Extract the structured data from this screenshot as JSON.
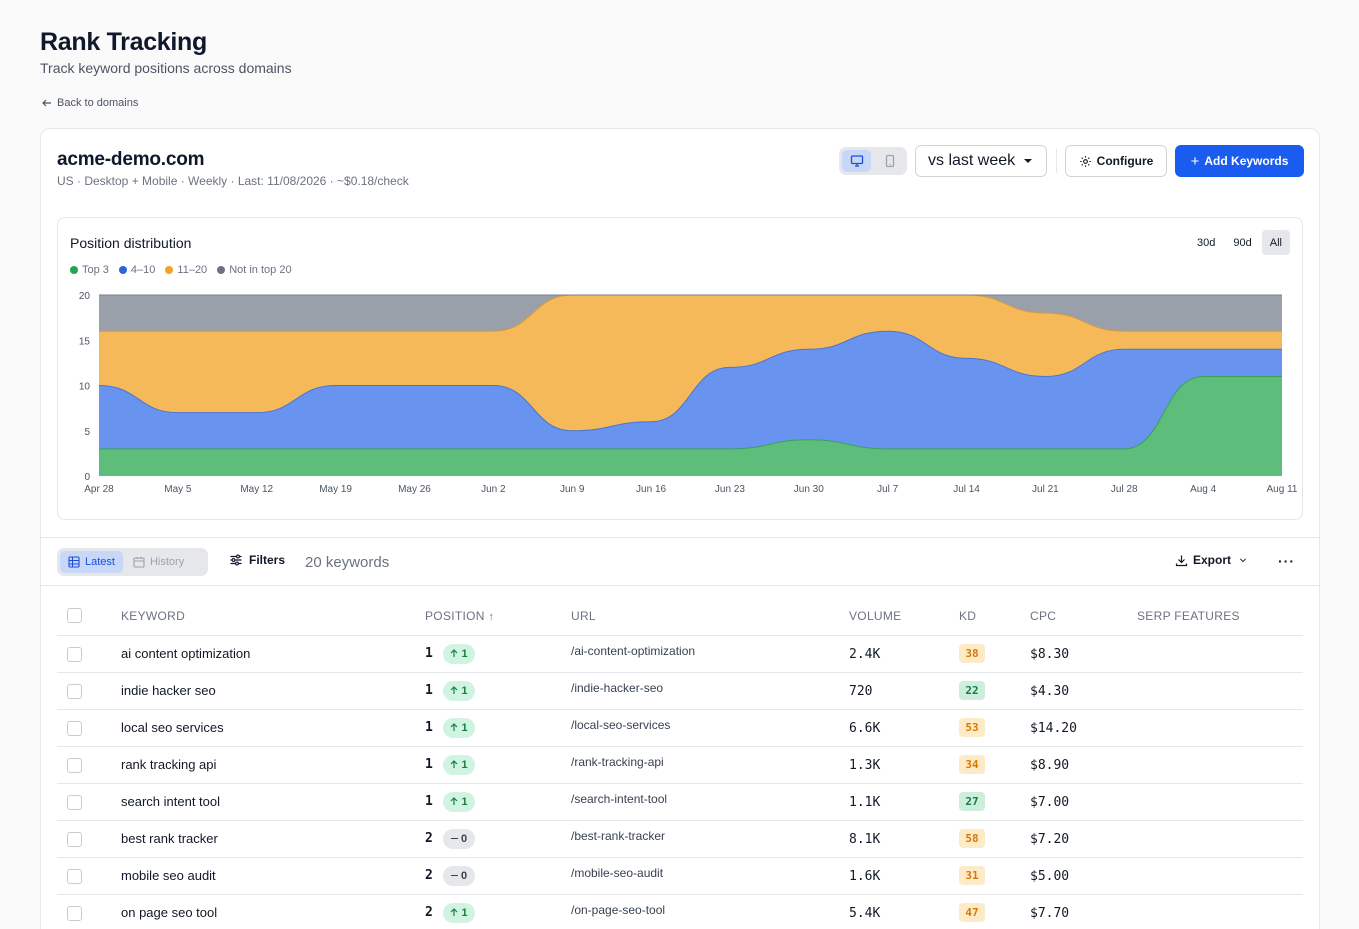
{
  "header": {
    "title": "Rank Tracking",
    "subtitle": "Track keyword positions across domains",
    "back_label": "Back to domains"
  },
  "domain": {
    "name": "acme-demo.com",
    "meta": "US · Desktop + Mobile · Weekly · Last: 11/08/2026 · ~$0.18/check",
    "compare_label": "vs last week",
    "configure_label": "Configure",
    "add_label": "Add Keywords"
  },
  "chart": {
    "title": "Position distribution",
    "ranges": [
      "30d",
      "90d",
      "All"
    ],
    "active_range": "All"
  },
  "colors": {
    "top3": "#5cbe7a",
    "top10": "#6893ef",
    "top20": "#f6b95a",
    "not_top20": "#9aa0aa",
    "accent": "#1a5cf0"
  },
  "chart_data": {
    "type": "area",
    "stacked": true,
    "x": [
      "Apr 28",
      "May 5",
      "May 12",
      "May 19",
      "May 26",
      "Jun 2",
      "Jun 9",
      "Jun 16",
      "Jun 23",
      "Jun 30",
      "Jul 7",
      "Jul 14",
      "Jul 21",
      "Jul 28",
      "Aug 4",
      "Aug 11"
    ],
    "ylim": [
      0,
      20
    ],
    "yticks": [
      0,
      5,
      10,
      15,
      20
    ],
    "series": [
      {
        "name": "Top 3",
        "values": [
          3,
          3,
          3,
          3,
          3,
          3,
          3,
          3,
          3,
          4,
          3,
          3,
          3,
          3,
          11,
          11
        ]
      },
      {
        "name": "4–10",
        "values": [
          7,
          4,
          4,
          7,
          7,
          7,
          2,
          3,
          9,
          10,
          13,
          10,
          8,
          11,
          3,
          3
        ]
      },
      {
        "name": "11–20",
        "values": [
          6,
          9,
          9,
          6,
          6,
          6,
          15,
          14,
          8,
          6,
          4,
          7,
          7,
          2,
          2,
          2
        ]
      },
      {
        "name": "Not in top 20",
        "values": [
          4,
          4,
          4,
          4,
          4,
          4,
          0,
          0,
          0,
          0,
          0,
          0,
          2,
          4,
          4,
          4
        ]
      }
    ],
    "legend": "top-left",
    "grid": false
  },
  "toolbar": {
    "latest_label": "Latest",
    "history_label": "History",
    "filters_label": "Filters",
    "count_label": "20 keywords",
    "export_label": "Export",
    "more_label": "···"
  },
  "table": {
    "columns": [
      "KEYWORD",
      "POSITION",
      "URL",
      "VOLUME",
      "KD",
      "CPC",
      "SERP FEATURES"
    ],
    "sort_indicator": "↑",
    "rows": [
      {
        "keyword": "ai content optimization",
        "position": "1",
        "change": "1",
        "dir": "up",
        "url": "/ai-content-optimization",
        "volume": "2.4K",
        "kd": "38",
        "kd_level": "med",
        "cpc": "$8.30"
      },
      {
        "keyword": "indie hacker seo",
        "position": "1",
        "change": "1",
        "dir": "up",
        "url": "/indie-hacker-seo",
        "volume": "720",
        "kd": "22",
        "kd_level": "low",
        "cpc": "$4.30"
      },
      {
        "keyword": "local seo services",
        "position": "1",
        "change": "1",
        "dir": "up",
        "url": "/local-seo-services",
        "volume": "6.6K",
        "kd": "53",
        "kd_level": "med",
        "cpc": "$14.20"
      },
      {
        "keyword": "rank tracking api",
        "position": "1",
        "change": "1",
        "dir": "up",
        "url": "/rank-tracking-api",
        "volume": "1.3K",
        "kd": "34",
        "kd_level": "med",
        "cpc": "$8.90"
      },
      {
        "keyword": "search intent tool",
        "position": "1",
        "change": "1",
        "dir": "up",
        "url": "/search-intent-tool",
        "volume": "1.1K",
        "kd": "27",
        "kd_level": "low",
        "cpc": "$7.00"
      },
      {
        "keyword": "best rank tracker",
        "position": "2",
        "change": "0",
        "dir": "flat",
        "url": "/best-rank-tracker",
        "volume": "8.1K",
        "kd": "58",
        "kd_level": "med",
        "cpc": "$7.20"
      },
      {
        "keyword": "mobile seo audit",
        "position": "2",
        "change": "0",
        "dir": "flat",
        "url": "/mobile-seo-audit",
        "volume": "1.6K",
        "kd": "31",
        "kd_level": "med",
        "cpc": "$5.00"
      },
      {
        "keyword": "on page seo tool",
        "position": "2",
        "change": "1",
        "dir": "up",
        "url": "/on-page-seo-tool",
        "volume": "5.4K",
        "kd": "47",
        "kd_level": "med",
        "cpc": "$7.70"
      }
    ]
  }
}
